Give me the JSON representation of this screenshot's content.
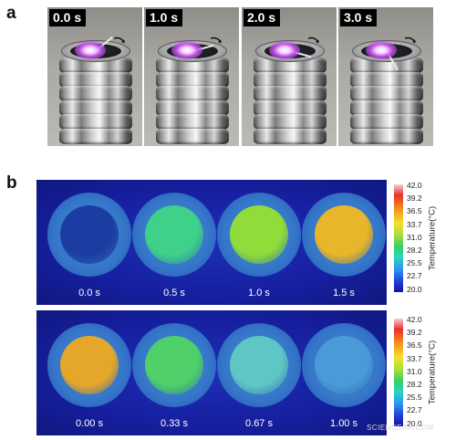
{
  "panel_a": {
    "letter": "a",
    "frames": [
      {
        "time": "0.0 s"
      },
      {
        "time": "1.0 s"
      },
      {
        "time": "2.0 s"
      },
      {
        "time": "3.0 s"
      }
    ]
  },
  "panel_b": {
    "letter": "b",
    "top_row": {
      "labels": [
        "0.0 s",
        "0.5 s",
        "1.0 s",
        "1.5 s"
      ],
      "sample_colors": [
        "#1b3da3",
        "#3fd08a",
        "#8fdc3a",
        "#e9b52a"
      ]
    },
    "bottom_row": {
      "labels": [
        "0.00 s",
        "0.33 s",
        "0.67 s",
        "1.00 s"
      ],
      "sample_colors": [
        "#e4a72a",
        "#4fd06a",
        "#5ec7c6",
        "#4a9ad8"
      ]
    },
    "colorbar": {
      "ticks": [
        "42.0",
        "39.2",
        "36.5",
        "33.7",
        "31.0",
        "28.2",
        "25.5",
        "22.7",
        "20.0"
      ],
      "title": "Temperature(°C)"
    }
  },
  "watermark": "SCIENCEAA.COM"
}
